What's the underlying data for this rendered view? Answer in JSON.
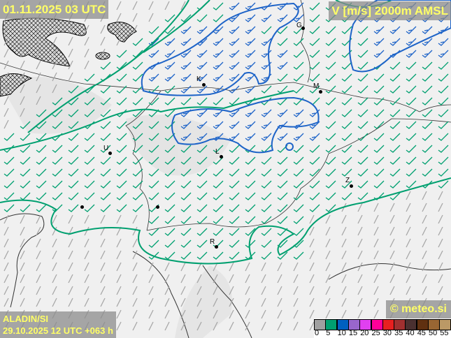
{
  "header": {
    "valid_time": "01.11.2025 03 UTC",
    "parameter": "V [m/s] 2000m AMSL"
  },
  "footer": {
    "model": "ALADIN/SI",
    "run": "29.10.2025 12 UTC +063 h",
    "copyright": "© meteo.si"
  },
  "legend": {
    "colors": [
      "#a0a0a0",
      "#00a070",
      "#0060c0",
      "#9966cc",
      "#e040f0",
      "#ff0099",
      "#e82020",
      "#a03030",
      "#4a3030",
      "#603010",
      "#996633",
      "#bb9966"
    ],
    "ticks": [
      "0",
      "5",
      "10",
      "15",
      "20",
      "25",
      "30",
      "35",
      "40",
      "45",
      "50",
      "55"
    ]
  },
  "cities": [
    {
      "label": "G"
    },
    {
      "label": "M"
    },
    {
      "label": "K"
    },
    {
      "label": "U"
    },
    {
      "label": "L"
    },
    {
      "label": "Z"
    },
    {
      "label": "R"
    }
  ],
  "colors": {
    "barb_weak": "#a8a8a8",
    "barb_mid": "#00a070",
    "barb_strong": "#1e64c8",
    "contour_green": "#00a070",
    "contour_blue": "#1e64c8"
  }
}
